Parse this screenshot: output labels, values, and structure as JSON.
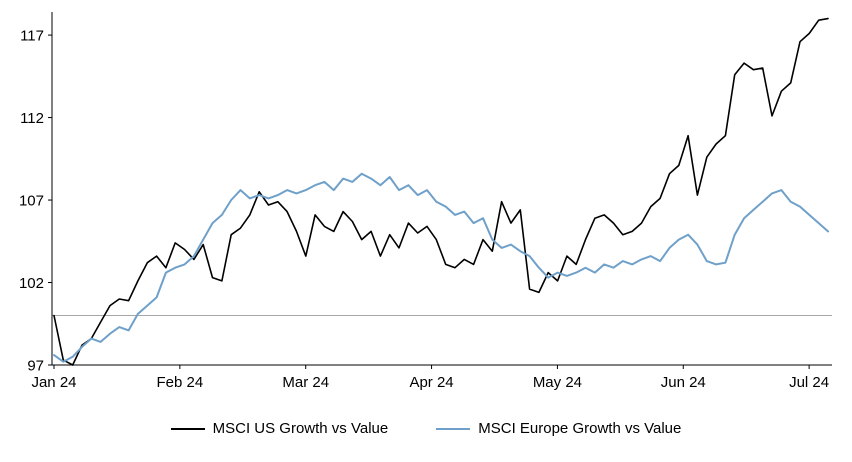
{
  "chart_data": {
    "type": "line",
    "title": "",
    "x_axis": {
      "labels": [
        "Jan 24",
        "Feb 24",
        "Mar 24",
        "Apr 24",
        "May 24",
        "Jun 24",
        "Jul 24"
      ]
    },
    "y_axis": {
      "ticks": [
        97,
        102,
        107,
        112,
        117
      ],
      "min": 97,
      "max": 118.4
    },
    "reference_line": {
      "value": 100,
      "color": "#A6A6A6"
    },
    "axis_color": "#000000",
    "grid": "off",
    "legend_position": "bottom",
    "series": [
      {
        "name": "MSCI US Growth vs Value",
        "color": "#000000",
        "values": [
          100.0,
          97.3,
          97.0,
          98.2,
          98.6,
          99.6,
          100.6,
          101.0,
          100.9,
          102.1,
          103.2,
          103.6,
          102.9,
          104.4,
          104.0,
          103.4,
          104.3,
          102.3,
          102.1,
          104.9,
          105.3,
          106.1,
          107.5,
          106.7,
          106.9,
          106.3,
          105.1,
          103.6,
          106.1,
          105.4,
          105.1,
          106.3,
          105.7,
          104.6,
          105.1,
          103.6,
          104.9,
          104.1,
          105.6,
          105.0,
          105.4,
          104.6,
          103.1,
          102.9,
          103.4,
          103.1,
          104.6,
          103.9,
          106.9,
          105.6,
          106.4,
          101.6,
          101.4,
          102.6,
          102.1,
          103.6,
          103.1,
          104.6,
          105.9,
          106.1,
          105.6,
          104.9,
          105.1,
          105.6,
          106.6,
          107.1,
          108.6,
          109.1,
          110.9,
          107.3,
          109.6,
          110.4,
          110.9,
          114.6,
          115.3,
          114.9,
          115.0,
          112.1,
          113.6,
          114.1,
          116.6,
          117.1,
          117.9,
          118.0
        ]
      },
      {
        "name": "MSCI Europe Growth vs Value",
        "color": "#6FA0C9",
        "values": [
          97.6,
          97.2,
          97.5,
          98.1,
          98.6,
          98.4,
          98.9,
          99.3,
          99.1,
          100.1,
          100.6,
          101.1,
          102.6,
          102.9,
          103.1,
          103.6,
          104.6,
          105.6,
          106.1,
          107.0,
          107.6,
          107.1,
          107.3,
          107.1,
          107.3,
          107.6,
          107.4,
          107.6,
          107.9,
          108.1,
          107.6,
          108.3,
          108.1,
          108.6,
          108.3,
          107.9,
          108.4,
          107.6,
          107.9,
          107.3,
          107.6,
          106.9,
          106.6,
          106.1,
          106.3,
          105.6,
          105.9,
          104.6,
          104.1,
          104.3,
          103.9,
          103.6,
          102.9,
          102.3,
          102.6,
          102.4,
          102.6,
          102.9,
          102.6,
          103.1,
          102.9,
          103.3,
          103.1,
          103.4,
          103.6,
          103.3,
          104.1,
          104.6,
          104.9,
          104.3,
          103.3,
          103.1,
          103.2,
          104.9,
          105.9,
          106.4,
          106.9,
          107.4,
          107.6,
          106.9,
          106.6,
          106.1,
          105.6,
          105.1
        ]
      }
    ]
  }
}
